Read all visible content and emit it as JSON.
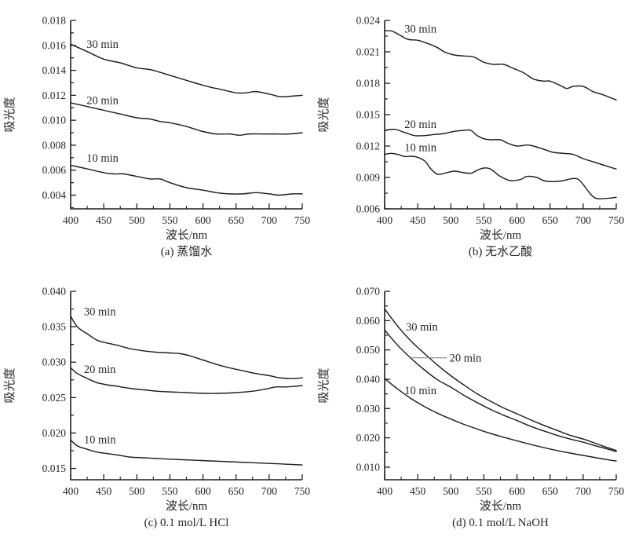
{
  "page": {
    "background": "#ffffff",
    "ink": "#1f1f1f",
    "leader_line_color": "#777777"
  },
  "chart_data": [
    {
      "type": "line",
      "caption": "(a) 蒸馏水",
      "xlabel": "波长/nm",
      "ylabel": "吸光度",
      "xlim": [
        400,
        750
      ],
      "xticks": [
        400,
        450,
        500,
        550,
        600,
        650,
        700,
        750
      ],
      "ylim": [
        0.0029,
        0.018
      ],
      "yticks": [
        0.004,
        0.006,
        0.008,
        0.01,
        0.012,
        0.014,
        0.016,
        0.018
      ],
      "legend_position": "inline-curve-labels",
      "grid": false,
      "series": [
        {
          "name": "30 min",
          "label": {
            "x": 424,
            "y": 0.0161
          },
          "x": [
            400,
            425,
            450,
            475,
            500,
            515,
            525,
            550,
            575,
            600,
            615,
            625,
            650,
            665,
            680,
            700,
            715,
            725,
            750
          ],
          "y": [
            0.0161,
            0.0155,
            0.0149,
            0.0146,
            0.0142,
            0.0141,
            0.014,
            0.0136,
            0.0132,
            0.0128,
            0.0126,
            0.0125,
            0.0122,
            0.0122,
            0.0123,
            0.0121,
            0.0119,
            0.0119,
            0.012
          ]
        },
        {
          "name": "20 min",
          "label": {
            "x": 424,
            "y": 0.0116
          },
          "x": [
            400,
            425,
            450,
            475,
            500,
            520,
            535,
            550,
            575,
            600,
            620,
            640,
            655,
            670,
            690,
            710,
            730,
            750
          ],
          "y": [
            0.0114,
            0.0111,
            0.0108,
            0.0105,
            0.0102,
            0.0101,
            0.0099,
            0.0098,
            0.0095,
            0.0091,
            0.0089,
            0.0089,
            0.0088,
            0.0089,
            0.0089,
            0.0089,
            0.0089,
            0.009
          ]
        },
        {
          "name": "10 min",
          "label": {
            "x": 424,
            "y": 0.007
          },
          "x": [
            400,
            425,
            450,
            465,
            480,
            500,
            520,
            535,
            550,
            575,
            600,
            620,
            640,
            660,
            680,
            700,
            715,
            735,
            750
          ],
          "y": [
            0.0064,
            0.0061,
            0.0058,
            0.0057,
            0.0057,
            0.0055,
            0.0053,
            0.0053,
            0.005,
            0.0046,
            0.0044,
            0.0042,
            0.0041,
            0.0041,
            0.0042,
            0.0041,
            0.004,
            0.0041,
            0.0041
          ]
        }
      ]
    },
    {
      "type": "line",
      "caption": "(b) 无水乙酸",
      "xlabel": "波长/nm",
      "ylabel": "吸光度",
      "xlim": [
        400,
        750
      ],
      "xticks": [
        400,
        450,
        500,
        550,
        600,
        650,
        700,
        750
      ],
      "ylim": [
        0.006,
        0.024
      ],
      "yticks": [
        0.006,
        0.009,
        0.012,
        0.015,
        0.018,
        0.021,
        0.024
      ],
      "legend_position": "inline-curve-labels",
      "grid": false,
      "series": [
        {
          "name": "30 min",
          "label": {
            "x": 430,
            "y": 0.0232
          },
          "x": [
            400,
            410,
            420,
            435,
            450,
            465,
            480,
            490,
            505,
            520,
            535,
            550,
            565,
            580,
            595,
            610,
            625,
            640,
            650,
            665,
            675,
            685,
            700,
            715,
            730,
            750
          ],
          "y": [
            0.023,
            0.023,
            0.0227,
            0.0222,
            0.0221,
            0.0218,
            0.0214,
            0.021,
            0.0207,
            0.0206,
            0.0205,
            0.02,
            0.0198,
            0.0198,
            0.0194,
            0.019,
            0.0184,
            0.0182,
            0.0182,
            0.0178,
            0.0175,
            0.0177,
            0.0177,
            0.0172,
            0.0169,
            0.0164
          ]
        },
        {
          "name": "20 min",
          "label": {
            "x": 430,
            "y": 0.0141
          },
          "x": [
            400,
            415,
            430,
            445,
            460,
            475,
            490,
            505,
            520,
            530,
            540,
            550,
            560,
            575,
            585,
            600,
            615,
            625,
            640,
            655,
            670,
            685,
            700,
            715,
            730,
            750
          ],
          "y": [
            0.0135,
            0.0136,
            0.0133,
            0.013,
            0.013,
            0.0131,
            0.0132,
            0.0134,
            0.0135,
            0.0135,
            0.013,
            0.0127,
            0.0126,
            0.0126,
            0.0123,
            0.012,
            0.0121,
            0.012,
            0.0117,
            0.0114,
            0.0113,
            0.0112,
            0.0108,
            0.0105,
            0.0102,
            0.0098
          ]
        },
        {
          "name": "10 min",
          "label": {
            "x": 430,
            "y": 0.0119
          },
          "x": [
            400,
            410,
            420,
            430,
            445,
            460,
            470,
            480,
            490,
            505,
            515,
            530,
            540,
            550,
            560,
            575,
            590,
            605,
            615,
            630,
            640,
            655,
            670,
            685,
            695,
            710,
            720,
            735,
            750
          ],
          "y": [
            0.0112,
            0.0113,
            0.0112,
            0.011,
            0.011,
            0.0106,
            0.0098,
            0.0093,
            0.0094,
            0.0096,
            0.0095,
            0.0094,
            0.0097,
            0.0099,
            0.0098,
            0.0091,
            0.0087,
            0.0088,
            0.0091,
            0.009,
            0.0087,
            0.0086,
            0.0087,
            0.0089,
            0.0087,
            0.0075,
            0.007,
            0.007,
            0.0071
          ]
        }
      ]
    },
    {
      "type": "line",
      "caption": "(c) 0.1 mol/L HCl",
      "xlabel": "波长/nm",
      "ylabel": "吸光度",
      "xlim": [
        400,
        750
      ],
      "xticks": [
        400,
        450,
        500,
        550,
        600,
        650,
        700,
        750
      ],
      "ylim": [
        0.0134,
        0.04
      ],
      "yticks": [
        0.015,
        0.02,
        0.025,
        0.03,
        0.035,
        0.04
      ],
      "legend_position": "inline-curve-labels",
      "grid": false,
      "series": [
        {
          "name": "30 min",
          "label": {
            "x": 420,
            "y": 0.0372
          },
          "x": [
            400,
            410,
            425,
            440,
            455,
            470,
            490,
            510,
            530,
            550,
            565,
            580,
            600,
            620,
            640,
            660,
            680,
            700,
            715,
            730,
            740,
            750
          ],
          "y": [
            0.0365,
            0.035,
            0.034,
            0.0331,
            0.0327,
            0.0324,
            0.0319,
            0.0316,
            0.0314,
            0.0313,
            0.0312,
            0.0309,
            0.0303,
            0.0297,
            0.0292,
            0.0288,
            0.0284,
            0.0281,
            0.0278,
            0.0277,
            0.0277,
            0.0278
          ]
        },
        {
          "name": "20 min",
          "label": {
            "x": 420,
            "y": 0.029
          },
          "x": [
            400,
            410,
            425,
            440,
            455,
            470,
            490,
            510,
            530,
            550,
            575,
            600,
            625,
            650,
            675,
            695,
            710,
            725,
            740,
            750
          ],
          "y": [
            0.0292,
            0.0284,
            0.0277,
            0.0271,
            0.0268,
            0.0266,
            0.0263,
            0.0261,
            0.0259,
            0.0258,
            0.0257,
            0.0256,
            0.0256,
            0.0257,
            0.0259,
            0.0262,
            0.0265,
            0.0265,
            0.0266,
            0.0267
          ]
        },
        {
          "name": "10 min",
          "label": {
            "x": 420,
            "y": 0.0191
          },
          "x": [
            400,
            410,
            425,
            440,
            455,
            470,
            490,
            510,
            530,
            550,
            575,
            600,
            625,
            650,
            675,
            700,
            725,
            750
          ],
          "y": [
            0.019,
            0.0182,
            0.0177,
            0.0173,
            0.0171,
            0.0169,
            0.0166,
            0.0165,
            0.0164,
            0.0163,
            0.0162,
            0.0161,
            0.016,
            0.0159,
            0.0158,
            0.0157,
            0.0156,
            0.0155
          ]
        }
      ]
    },
    {
      "type": "line",
      "caption": "(d) 0.1 mol/L NaOH",
      "xlabel": "波长/nm",
      "ylabel": "吸光度",
      "xlim": [
        400,
        750
      ],
      "xticks": [
        400,
        450,
        500,
        550,
        600,
        650,
        700,
        750
      ],
      "ylim": [
        0.0057,
        0.07
      ],
      "yticks": [
        0.01,
        0.02,
        0.03,
        0.04,
        0.05,
        0.06,
        0.07
      ],
      "legend_position": "inline-curve-labels",
      "grid": false,
      "series": [
        {
          "name": "30 min",
          "label": {
            "x": 432,
            "y": 0.058
          },
          "x": [
            400,
            420,
            440,
            460,
            480,
            500,
            520,
            540,
            560,
            580,
            600,
            620,
            640,
            660,
            680,
            700,
            720,
            735,
            750
          ],
          "y": [
            0.064,
            0.058,
            0.053,
            0.0488,
            0.0448,
            0.0412,
            0.038,
            0.035,
            0.0325,
            0.0302,
            0.0282,
            0.0262,
            0.0243,
            0.0226,
            0.0209,
            0.0196,
            0.018,
            0.0168,
            0.0157
          ]
        },
        {
          "name": "20 min",
          "label": {
            "x": 498,
            "y": 0.0473
          },
          "leader": {
            "x1": 439,
            "x2": 494,
            "y": 0.0473
          },
          "x": [
            400,
            420,
            440,
            460,
            480,
            500,
            520,
            540,
            560,
            580,
            600,
            620,
            640,
            660,
            680,
            700,
            720,
            735,
            750
          ],
          "y": [
            0.0568,
            0.0515,
            0.0471,
            0.0432,
            0.0398,
            0.0373,
            0.0345,
            0.032,
            0.0297,
            0.0277,
            0.0259,
            0.024,
            0.0224,
            0.0209,
            0.0196,
            0.0185,
            0.0172,
            0.0163,
            0.0153
          ]
        },
        {
          "name": "10 min",
          "label": {
            "x": 430,
            "y": 0.0363
          },
          "x": [
            400,
            420,
            440,
            460,
            480,
            500,
            520,
            540,
            560,
            580,
            600,
            620,
            640,
            660,
            680,
            700,
            720,
            735,
            750
          ],
          "y": [
            0.0402,
            0.0366,
            0.0334,
            0.0307,
            0.0284,
            0.0264,
            0.0246,
            0.023,
            0.0215,
            0.0202,
            0.019,
            0.0178,
            0.0167,
            0.0157,
            0.0148,
            0.014,
            0.0132,
            0.0126,
            0.0121
          ]
        }
      ]
    }
  ]
}
